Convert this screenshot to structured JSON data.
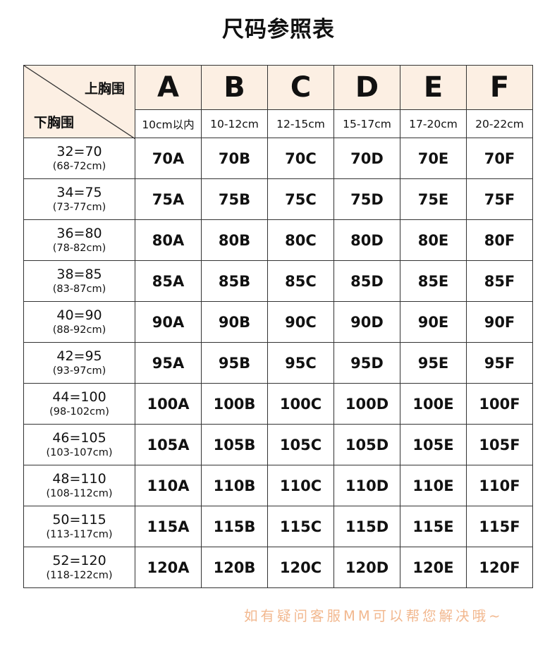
{
  "title": "尺码参照表",
  "corner": {
    "top": "上胸围",
    "bottom": "下胸围"
  },
  "columns": [
    {
      "letter": "A",
      "range": "10cm以内"
    },
    {
      "letter": "B",
      "range": "10-12cm"
    },
    {
      "letter": "C",
      "range": "12-15cm"
    },
    {
      "letter": "D",
      "range": "15-17cm"
    },
    {
      "letter": "E",
      "range": "17-20cm"
    },
    {
      "letter": "F",
      "range": "20-22cm"
    }
  ],
  "rows": [
    {
      "band": "32=70",
      "range": "(68-72cm)",
      "sizes": [
        "70A",
        "70B",
        "70C",
        "70D",
        "70E",
        "70F"
      ]
    },
    {
      "band": "34=75",
      "range": "(73-77cm)",
      "sizes": [
        "75A",
        "75B",
        "75C",
        "75D",
        "75E",
        "75F"
      ]
    },
    {
      "band": "36=80",
      "range": "(78-82cm)",
      "sizes": [
        "80A",
        "80B",
        "80C",
        "80D",
        "80E",
        "80F"
      ]
    },
    {
      "band": "38=85",
      "range": "(83-87cm)",
      "sizes": [
        "85A",
        "85B",
        "85C",
        "85D",
        "85E",
        "85F"
      ]
    },
    {
      "band": "40=90",
      "range": "(88-92cm)",
      "sizes": [
        "90A",
        "90B",
        "90C",
        "90D",
        "90E",
        "90F"
      ]
    },
    {
      "band": "42=95",
      "range": "(93-97cm)",
      "sizes": [
        "95A",
        "95B",
        "95C",
        "95D",
        "95E",
        "95F"
      ]
    },
    {
      "band": "44=100",
      "range": "(98-102cm)",
      "sizes": [
        "100A",
        "100B",
        "100C",
        "100D",
        "100E",
        "100F"
      ]
    },
    {
      "band": "46=105",
      "range": "(103-107cm)",
      "sizes": [
        "105A",
        "105B",
        "105C",
        "105D",
        "105E",
        "105F"
      ]
    },
    {
      "band": "48=110",
      "range": "(108-112cm)",
      "sizes": [
        "110A",
        "110B",
        "110C",
        "110D",
        "110E",
        "110F"
      ]
    },
    {
      "band": "50=115",
      "range": "(113-117cm)",
      "sizes": [
        "115A",
        "115B",
        "115C",
        "115D",
        "115E",
        "115F"
      ]
    },
    {
      "band": "52=120",
      "range": "(118-122cm)",
      "sizes": [
        "120A",
        "120B",
        "120C",
        "120D",
        "120E",
        "120F"
      ]
    }
  ],
  "footer": "如有疑问客服MM可以帮您解决哦~",
  "colors": {
    "header_bg": "#fcefe3",
    "footer_text": "#f2b88f"
  }
}
